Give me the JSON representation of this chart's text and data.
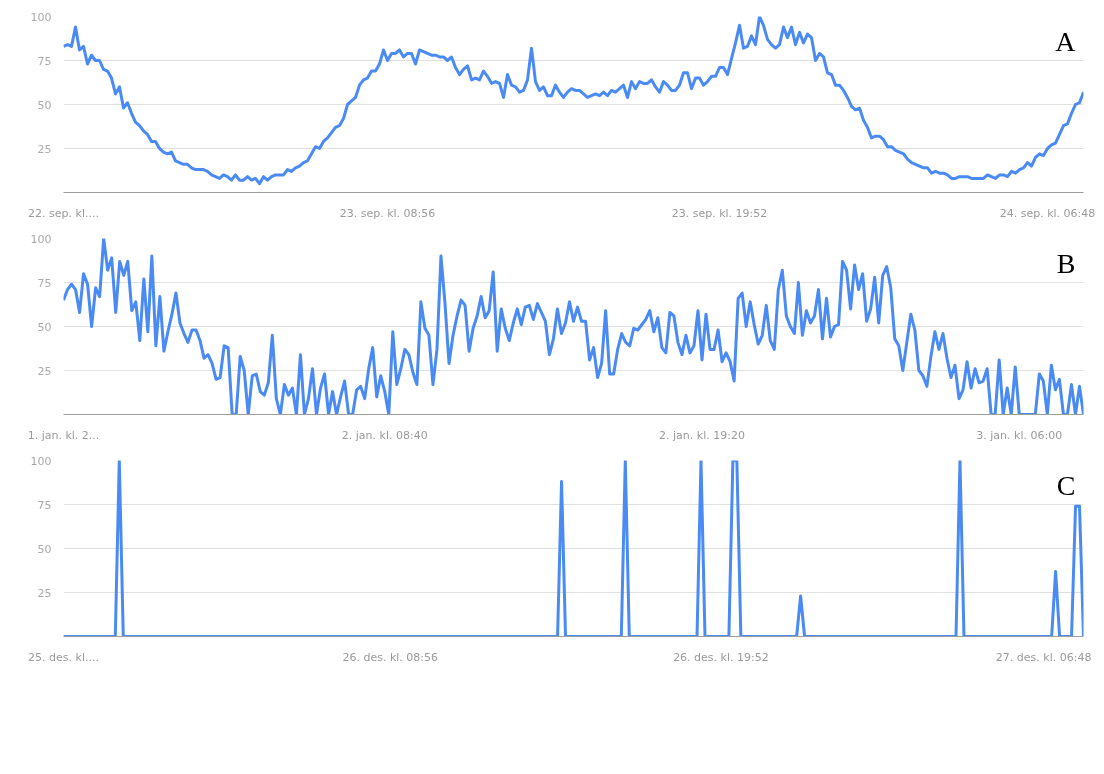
{
  "chart_data": [
    {
      "type": "line",
      "title": "A",
      "grid": "y",
      "ylim": [
        0,
        100
      ],
      "yticks": [
        25,
        50,
        75,
        100
      ],
      "categories": [
        "22. sep. kl....",
        null,
        null,
        null,
        null,
        null,
        null,
        null,
        null,
        null,
        null,
        null,
        null,
        null,
        null,
        null,
        null,
        null,
        null,
        null,
        null,
        null,
        null,
        null,
        null,
        null,
        null,
        null,
        null,
        null,
        null,
        null,
        null,
        null,
        null,
        null,
        null,
        null,
        null,
        null,
        null,
        null,
        null,
        null,
        null,
        null,
        null,
        null,
        null,
        null,
        null,
        null,
        null,
        null,
        null,
        null,
        null,
        null,
        null,
        null,
        null,
        null,
        null,
        null,
        null,
        null,
        null,
        null,
        null,
        null,
        null,
        null,
        null,
        null,
        null,
        null,
        null,
        null,
        null,
        null,
        null,
        "23. sep. kl. 08:56",
        null,
        null,
        null,
        null,
        null,
        null,
        null,
        null,
        null,
        null,
        null,
        null,
        null,
        null,
        null,
        null,
        null,
        null,
        null,
        null,
        null,
        null,
        null,
        null,
        null,
        null,
        null,
        null,
        null,
        null,
        null,
        null,
        null,
        null,
        null,
        null,
        null,
        null,
        null,
        null,
        null,
        null,
        null,
        null,
        null,
        null,
        null,
        null,
        null,
        null,
        null,
        null,
        null,
        null,
        null,
        null,
        null,
        null,
        null,
        null,
        null,
        null,
        null,
        null,
        null,
        null,
        null,
        null,
        null,
        null,
        null,
        null,
        null,
        null,
        null,
        null,
        null,
        null,
        null,
        null,
        null,
        null,
        "23. sep. kl. 19:52",
        null,
        null,
        null,
        null,
        null,
        null,
        null,
        null,
        null,
        null,
        null,
        null,
        null,
        null,
        null,
        null,
        null,
        null,
        null,
        null,
        null,
        null,
        null,
        null,
        null,
        null,
        null,
        null,
        null,
        null,
        null,
        null,
        null,
        null,
        null,
        null,
        null,
        null,
        null,
        null,
        null,
        null,
        null,
        null,
        null,
        null,
        null,
        null,
        null,
        null,
        null,
        null,
        null,
        null,
        null,
        null,
        null,
        null,
        null,
        null,
        null,
        null,
        null,
        null,
        null,
        null,
        null,
        null,
        null,
        null,
        null,
        null,
        null,
        null,
        null,
        null,
        null,
        null,
        null,
        null,
        null,
        "24. sep. kl. 06:48",
        null,
        null,
        null,
        null,
        null,
        null,
        null,
        null,
        null
      ],
      "series": [
        {
          "color": "#4a8af4",
          "values": [
            83,
            84,
            83,
            94,
            81,
            83,
            73,
            78,
            75,
            75,
            70,
            69,
            65,
            56,
            60,
            48,
            51,
            45,
            40,
            38,
            35,
            33,
            29,
            29,
            25,
            23,
            22,
            23,
            18,
            17,
            16,
            16,
            14,
            13,
            13,
            13,
            12,
            10,
            9,
            8,
            10,
            9,
            7,
            10,
            7,
            7,
            9,
            7,
            8,
            5,
            9,
            7,
            9,
            10,
            10,
            10,
            13,
            12,
            14,
            15,
            17,
            18,
            22,
            26,
            25,
            29,
            31,
            34,
            37,
            38,
            42,
            50,
            52,
            54,
            61,
            64,
            65,
            69,
            69,
            73,
            81,
            75,
            79,
            79,
            81,
            77,
            79,
            79,
            73,
            81,
            80,
            79,
            78,
            78,
            77,
            77,
            75,
            77,
            71,
            67,
            70,
            72,
            64,
            65,
            64,
            69,
            66,
            62,
            63,
            62,
            54,
            67,
            61,
            60,
            57,
            58,
            64,
            82,
            63,
            58,
            60,
            55,
            55,
            61,
            57,
            54,
            57,
            59,
            58,
            58,
            56,
            54,
            55,
            56,
            55,
            57,
            55,
            58,
            57,
            59,
            61,
            54,
            63,
            59,
            63,
            62,
            62,
            64,
            60,
            57,
            63,
            61,
            58,
            58,
            61,
            68,
            68,
            59,
            65,
            65,
            61,
            63,
            66,
            66,
            71,
            71,
            67,
            76,
            85,
            95,
            82,
            83,
            89,
            84,
            100,
            95,
            87,
            84,
            82,
            84,
            94,
            88,
            94,
            84,
            91,
            85,
            90,
            88,
            75,
            79,
            77,
            68,
            67,
            61,
            61,
            58,
            54,
            49,
            47,
            48,
            41,
            37,
            31,
            32,
            32,
            30,
            26,
            26,
            24,
            23,
            22,
            19,
            17,
            16,
            15,
            14,
            14,
            11,
            12,
            11,
            11,
            10,
            8,
            8,
            9,
            9,
            9,
            8,
            8,
            8,
            8,
            10,
            9,
            8,
            10,
            10,
            9,
            12,
            11,
            13,
            14,
            17,
            15,
            20,
            22,
            21,
            25,
            27,
            28,
            33,
            38,
            39,
            45,
            50,
            51,
            57
          ]
        }
      ]
    },
    {
      "type": "line",
      "title": "B",
      "grid": "y",
      "ylim": [
        0,
        100
      ],
      "yticks": [
        25,
        50,
        75,
        100
      ],
      "categories": [
        "1. jan. kl. 2...",
        null,
        null,
        null,
        null,
        null,
        null,
        null,
        null,
        null,
        null,
        null,
        null,
        null,
        null,
        null,
        null,
        null,
        null,
        null,
        null,
        null,
        null,
        null,
        null,
        null,
        null,
        null,
        null,
        null,
        null,
        null,
        null,
        null,
        null,
        null,
        null,
        null,
        null,
        null,
        null,
        null,
        null,
        null,
        null,
        null,
        null,
        null,
        null,
        null,
        null,
        null,
        null,
        null,
        null,
        null,
        null,
        null,
        null,
        null,
        null,
        null,
        null,
        null,
        null,
        null,
        null,
        null,
        null,
        null,
        null,
        null,
        null,
        null,
        null,
        null,
        null,
        null,
        null,
        null,
        "2. jan. kl. 08:40",
        null,
        null,
        null,
        null,
        null,
        null,
        null,
        null,
        null,
        null,
        null,
        null,
        null,
        null,
        null,
        null,
        null,
        null,
        null,
        null,
        null,
        null,
        null,
        null,
        null,
        null,
        null,
        null,
        null,
        null,
        null,
        null,
        null,
        null,
        null,
        null,
        null,
        null,
        null,
        null,
        null,
        null,
        null,
        null,
        null,
        null,
        null,
        null,
        null,
        null,
        null,
        null,
        null,
        null,
        null,
        null,
        null,
        null,
        null,
        null,
        null,
        null,
        null,
        null,
        null,
        null,
        null,
        null,
        null,
        null,
        null,
        null,
        null,
        null,
        null,
        null,
        null,
        null,
        "2. jan. kl. 19:20",
        null,
        null,
        null,
        null,
        null,
        null,
        null,
        null,
        null,
        null,
        null,
        null,
        null,
        null,
        null,
        null,
        null,
        null,
        null,
        null,
        null,
        null,
        null,
        null,
        null,
        null,
        null,
        null,
        null,
        null,
        null,
        null,
        null,
        null,
        null,
        null,
        null,
        null,
        null,
        null,
        null,
        null,
        null,
        null,
        null,
        null,
        null,
        null,
        null,
        null,
        null,
        null,
        null,
        null,
        null,
        null,
        null,
        null,
        null,
        null,
        null,
        null,
        null,
        null,
        null,
        null,
        null,
        null,
        null,
        null,
        null,
        null,
        null,
        null,
        null,
        null,
        null,
        null,
        "3. jan. kl. 06:00",
        null,
        null,
        null,
        null,
        null,
        null,
        null,
        null,
        null,
        null,
        null,
        null,
        null,
        null,
        null,
        null
      ],
      "series": [
        {
          "color": "#4a8af4",
          "values": [
            65,
            71,
            74,
            71,
            58,
            80,
            74,
            50,
            72,
            67,
            100,
            82,
            89,
            58,
            87,
            79,
            87,
            59,
            64,
            42,
            77,
            47,
            90,
            39,
            67,
            36,
            47,
            57,
            69,
            52,
            46,
            41,
            48,
            48,
            42,
            32,
            34,
            29,
            20,
            21,
            39,
            38,
            0,
            0,
            33,
            25,
            0,
            22,
            23,
            13,
            11,
            18,
            45,
            9,
            0,
            17,
            11,
            15,
            0,
            34,
            0,
            9,
            26,
            0,
            15,
            23,
            0,
            13,
            0,
            10,
            19,
            0,
            0,
            14,
            16,
            9,
            26,
            38,
            10,
            22,
            13,
            0,
            47,
            17,
            26,
            37,
            34,
            24,
            17,
            64,
            49,
            45,
            17,
            37,
            90,
            63,
            29,
            45,
            56,
            65,
            62,
            36,
            49,
            56,
            67,
            55,
            59,
            81,
            36,
            60,
            49,
            42,
            52,
            60,
            51,
            61,
            62,
            54,
            63,
            58,
            53,
            34,
            43,
            60,
            46,
            52,
            64,
            53,
            61,
            53,
            53,
            31,
            38,
            21,
            29,
            59,
            23,
            23,
            37,
            46,
            41,
            39,
            49,
            48,
            51,
            54,
            59,
            47,
            55,
            38,
            35,
            58,
            56,
            41,
            34,
            45,
            35,
            39,
            59,
            31,
            57,
            37,
            37,
            48,
            30,
            35,
            30,
            19,
            66,
            69,
            50,
            64,
            51,
            40,
            45,
            62,
            42,
            37,
            71,
            82,
            56,
            50,
            46,
            75,
            45,
            59,
            52,
            56,
            71,
            43,
            66,
            44,
            50,
            51,
            87,
            82,
            60,
            85,
            71,
            80,
            53,
            60,
            78,
            52,
            79,
            84,
            72,
            43,
            39,
            25,
            41,
            57,
            48,
            25,
            22,
            16,
            33,
            47,
            37,
            46,
            32,
            21,
            28,
            9,
            14,
            30,
            15,
            26,
            18,
            19,
            26,
            0,
            0,
            31,
            0,
            15,
            0,
            27,
            0,
            0,
            0,
            0,
            0,
            23,
            19,
            0,
            28,
            14,
            20,
            0,
            0,
            17,
            0,
            16,
            0
          ]
        }
      ]
    },
    {
      "type": "line",
      "title": "C",
      "grid": "y",
      "ylim": [
        0,
        100
      ],
      "yticks": [
        25,
        50,
        75,
        100
      ],
      "categories": [
        "25. des. kl....",
        null,
        null,
        null,
        null,
        null,
        null,
        null,
        null,
        null,
        null,
        null,
        null,
        null,
        null,
        null,
        null,
        null,
        null,
        null,
        null,
        null,
        null,
        null,
        null,
        null,
        null,
        null,
        null,
        null,
        null,
        null,
        null,
        null,
        null,
        null,
        null,
        null,
        null,
        null,
        null,
        null,
        null,
        null,
        null,
        null,
        null,
        null,
        null,
        null,
        null,
        null,
        null,
        null,
        null,
        null,
        null,
        null,
        null,
        null,
        null,
        null,
        null,
        null,
        null,
        null,
        null,
        null,
        null,
        null,
        null,
        null,
        null,
        null,
        null,
        null,
        null,
        null,
        null,
        null,
        null,
        null,
        "26. des. kl. 08:56",
        null,
        null,
        null,
        null,
        null,
        null,
        null,
        null,
        null,
        null,
        null,
        null,
        null,
        null,
        null,
        null,
        null,
        null,
        null,
        null,
        null,
        null,
        null,
        null,
        null,
        null,
        null,
        null,
        null,
        null,
        null,
        null,
        null,
        null,
        null,
        null,
        null,
        null,
        null,
        null,
        null,
        null,
        null,
        null,
        null,
        null,
        null,
        null,
        null,
        null,
        null,
        null,
        null,
        null,
        null,
        null,
        null,
        null,
        null,
        null,
        null,
        null,
        null,
        null,
        null,
        null,
        null,
        null,
        null,
        null,
        null,
        null,
        null,
        null,
        null,
        null,
        null,
        null,
        null,
        null,
        null,
        null,
        "26. des. kl. 19:52",
        null,
        null,
        null,
        null,
        null,
        null,
        null,
        null,
        null,
        null,
        null,
        null,
        null,
        null,
        null,
        null,
        null,
        null,
        null,
        null,
        null,
        null,
        null,
        null,
        null,
        null,
        null,
        null,
        null,
        null,
        null,
        null,
        null,
        null,
        null,
        null,
        null,
        null,
        null,
        null,
        null,
        null,
        null,
        null,
        null,
        null,
        null,
        null,
        null,
        null,
        null,
        null,
        null,
        null,
        null,
        null,
        null,
        null,
        null,
        null,
        null,
        null,
        null,
        null,
        null,
        null,
        null,
        null,
        null,
        null,
        null,
        null,
        null,
        null,
        null,
        null,
        null,
        null,
        null,
        null,
        "27. des. kl. 06:48",
        null,
        null,
        null,
        null,
        null,
        null,
        null,
        null,
        null,
        null
      ],
      "series": [
        {
          "color": "#4a8af4",
          "values": [
            0,
            0,
            0,
            0,
            0,
            0,
            0,
            0,
            0,
            0,
            0,
            0,
            0,
            0,
            100,
            0,
            0,
            0,
            0,
            0,
            0,
            0,
            0,
            0,
            0,
            0,
            0,
            0,
            0,
            0,
            0,
            0,
            0,
            0,
            0,
            0,
            0,
            0,
            0,
            0,
            0,
            0,
            0,
            0,
            0,
            0,
            0,
            0,
            0,
            0,
            0,
            0,
            0,
            0,
            0,
            0,
            0,
            0,
            0,
            0,
            0,
            0,
            0,
            0,
            0,
            0,
            0,
            0,
            0,
            0,
            0,
            0,
            0,
            0,
            0,
            0,
            0,
            0,
            0,
            0,
            0,
            0,
            0,
            0,
            0,
            0,
            0,
            0,
            0,
            0,
            0,
            0,
            0,
            0,
            0,
            0,
            0,
            0,
            0,
            0,
            0,
            0,
            0,
            0,
            0,
            0,
            0,
            0,
            0,
            0,
            0,
            0,
            0,
            0,
            0,
            0,
            0,
            0,
            0,
            0,
            0,
            0,
            0,
            0,
            0,
            88,
            0,
            0,
            0,
            0,
            0,
            0,
            0,
            0,
            0,
            0,
            0,
            0,
            0,
            0,
            0,
            100,
            0,
            0,
            0,
            0,
            0,
            0,
            0,
            0,
            0,
            0,
            0,
            0,
            0,
            0,
            0,
            0,
            0,
            0,
            100,
            0,
            0,
            0,
            0,
            0,
            0,
            0,
            100,
            100,
            0,
            0,
            0,
            0,
            0,
            0,
            0,
            0,
            0,
            0,
            0,
            0,
            0,
            0,
            0,
            23,
            0,
            0,
            0,
            0,
            0,
            0,
            0,
            0,
            0,
            0,
            0,
            0,
            0,
            0,
            0,
            0,
            0,
            0,
            0,
            0,
            0,
            0,
            0,
            0,
            0,
            0,
            0,
            0,
            0,
            0,
            0,
            0,
            0,
            0,
            0,
            0,
            0,
            0,
            0,
            100,
            0,
            0,
            0,
            0,
            0,
            0,
            0,
            0,
            0,
            0,
            0,
            0,
            0,
            0,
            0,
            0,
            0,
            0,
            0,
            0,
            0,
            0,
            0,
            37,
            0,
            0,
            0,
            0,
            74,
            74,
            0
          ]
        }
      ]
    }
  ]
}
